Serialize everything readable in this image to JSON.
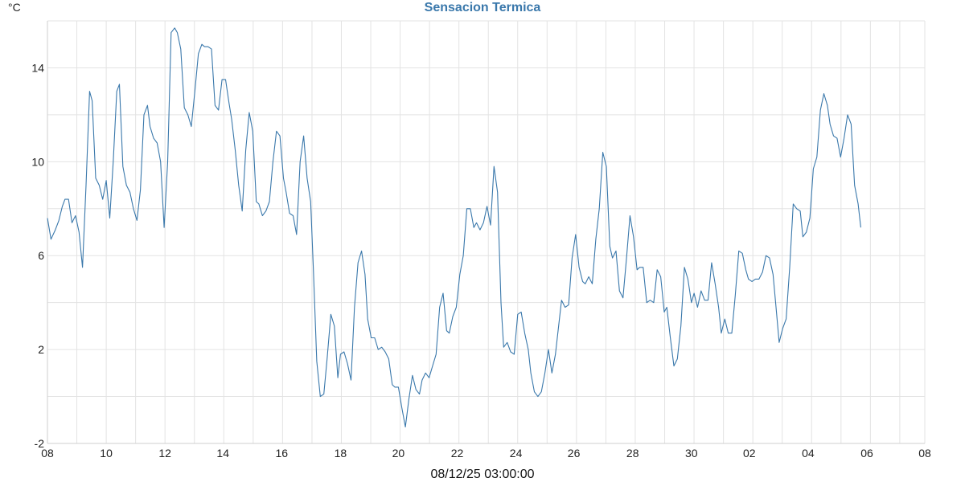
{
  "chart_data": {
    "type": "line",
    "title": "Sensacion Termica",
    "y_unit_label": "°C",
    "xlabel": "08/12/25 03:00:00",
    "ylim": [
      -2,
      16
    ],
    "x_domain": [
      0,
      1
    ],
    "y_ticks": [
      -2,
      2,
      6,
      10,
      14
    ],
    "x_ticks": [
      {
        "label": "08",
        "pos": 0.0
      },
      {
        "label": "10",
        "pos": 0.067
      },
      {
        "label": "12",
        "pos": 0.134
      },
      {
        "label": "14",
        "pos": 0.2
      },
      {
        "label": "16",
        "pos": 0.267
      },
      {
        "label": "18",
        "pos": 0.334
      },
      {
        "label": "20",
        "pos": 0.4
      },
      {
        "label": "22",
        "pos": 0.467
      },
      {
        "label": "24",
        "pos": 0.534
      },
      {
        "label": "26",
        "pos": 0.6
      },
      {
        "label": "28",
        "pos": 0.667
      },
      {
        "label": "30",
        "pos": 0.734
      },
      {
        "label": "02",
        "pos": 0.8
      },
      {
        "label": "04",
        "pos": 0.867
      },
      {
        "label": "06",
        "pos": 0.934
      },
      {
        "label": "08",
        "pos": 1.0
      }
    ],
    "grid": true,
    "colors": {
      "line": "#3a78ab",
      "title": "#3a78ab",
      "grid": "#e3e3e3"
    },
    "series": [
      {
        "points": [
          [
            0.0,
            7.6
          ],
          [
            0.004,
            6.7
          ],
          [
            0.009,
            7.1
          ],
          [
            0.013,
            7.5
          ],
          [
            0.017,
            8.1
          ],
          [
            0.02,
            8.4
          ],
          [
            0.024,
            8.4
          ],
          [
            0.028,
            7.4
          ],
          [
            0.032,
            7.7
          ],
          [
            0.036,
            7.0
          ],
          [
            0.04,
            5.5
          ],
          [
            0.044,
            9.0
          ],
          [
            0.048,
            13.0
          ],
          [
            0.051,
            12.6
          ],
          [
            0.055,
            9.3
          ],
          [
            0.059,
            9.0
          ],
          [
            0.063,
            8.4
          ],
          [
            0.067,
            9.2
          ],
          [
            0.071,
            7.6
          ],
          [
            0.075,
            10.0
          ],
          [
            0.079,
            13.0
          ],
          [
            0.082,
            13.3
          ],
          [
            0.086,
            9.8
          ],
          [
            0.09,
            9.0
          ],
          [
            0.094,
            8.7
          ],
          [
            0.098,
            8.0
          ],
          [
            0.102,
            7.5
          ],
          [
            0.106,
            8.8
          ],
          [
            0.11,
            12.0
          ],
          [
            0.114,
            12.4
          ],
          [
            0.117,
            11.5
          ],
          [
            0.121,
            11.0
          ],
          [
            0.125,
            10.8
          ],
          [
            0.129,
            10.0
          ],
          [
            0.133,
            7.2
          ],
          [
            0.137,
            10.0
          ],
          [
            0.141,
            15.5
          ],
          [
            0.145,
            15.7
          ],
          [
            0.148,
            15.5
          ],
          [
            0.152,
            14.8
          ],
          [
            0.156,
            12.3
          ],
          [
            0.16,
            12.0
          ],
          [
            0.164,
            11.5
          ],
          [
            0.168,
            13.0
          ],
          [
            0.172,
            14.6
          ],
          [
            0.176,
            15.0
          ],
          [
            0.179,
            14.9
          ],
          [
            0.183,
            14.9
          ],
          [
            0.187,
            14.8
          ],
          [
            0.191,
            12.4
          ],
          [
            0.195,
            12.2
          ],
          [
            0.199,
            13.5
          ],
          [
            0.203,
            13.5
          ],
          [
            0.207,
            12.5
          ],
          [
            0.21,
            11.8
          ],
          [
            0.214,
            10.5
          ],
          [
            0.218,
            9.0
          ],
          [
            0.222,
            7.9
          ],
          [
            0.226,
            10.5
          ],
          [
            0.23,
            12.1
          ],
          [
            0.234,
            11.3
          ],
          [
            0.238,
            8.3
          ],
          [
            0.241,
            8.2
          ],
          [
            0.245,
            7.7
          ],
          [
            0.249,
            7.9
          ],
          [
            0.253,
            8.3
          ],
          [
            0.257,
            10.0
          ],
          [
            0.261,
            11.3
          ],
          [
            0.265,
            11.1
          ],
          [
            0.269,
            9.3
          ],
          [
            0.272,
            8.7
          ],
          [
            0.276,
            7.8
          ],
          [
            0.28,
            7.7
          ],
          [
            0.284,
            6.9
          ],
          [
            0.288,
            10.0
          ],
          [
            0.292,
            11.1
          ],
          [
            0.296,
            9.3
          ],
          [
            0.3,
            8.3
          ],
          [
            0.303,
            5.5
          ],
          [
            0.307,
            1.5
          ],
          [
            0.311,
            0.0
          ],
          [
            0.315,
            0.1
          ],
          [
            0.319,
            1.7
          ],
          [
            0.323,
            3.5
          ],
          [
            0.327,
            3.0
          ],
          [
            0.331,
            0.8
          ],
          [
            0.334,
            1.8
          ],
          [
            0.338,
            1.9
          ],
          [
            0.342,
            1.4
          ],
          [
            0.346,
            0.7
          ],
          [
            0.35,
            3.8
          ],
          [
            0.354,
            5.7
          ],
          [
            0.358,
            6.2
          ],
          [
            0.362,
            5.2
          ],
          [
            0.365,
            3.3
          ],
          [
            0.369,
            2.5
          ],
          [
            0.373,
            2.5
          ],
          [
            0.377,
            2.0
          ],
          [
            0.381,
            2.1
          ],
          [
            0.385,
            1.9
          ],
          [
            0.389,
            1.6
          ],
          [
            0.393,
            0.5
          ],
          [
            0.396,
            0.4
          ],
          [
            0.4,
            0.4
          ],
          [
            0.404,
            -0.5
          ],
          [
            0.408,
            -1.3
          ],
          [
            0.412,
            -0.1
          ],
          [
            0.416,
            0.9
          ],
          [
            0.42,
            0.3
          ],
          [
            0.424,
            0.1
          ],
          [
            0.427,
            0.7
          ],
          [
            0.431,
            1.0
          ],
          [
            0.435,
            0.8
          ],
          [
            0.439,
            1.3
          ],
          [
            0.443,
            1.8
          ],
          [
            0.447,
            3.8
          ],
          [
            0.451,
            4.4
          ],
          [
            0.455,
            2.8
          ],
          [
            0.458,
            2.7
          ],
          [
            0.462,
            3.4
          ],
          [
            0.466,
            3.8
          ],
          [
            0.47,
            5.2
          ],
          [
            0.474,
            6.0
          ],
          [
            0.478,
            8.0
          ],
          [
            0.482,
            8.0
          ],
          [
            0.486,
            7.2
          ],
          [
            0.489,
            7.4
          ],
          [
            0.493,
            7.1
          ],
          [
            0.497,
            7.4
          ],
          [
            0.501,
            8.1
          ],
          [
            0.505,
            7.3
          ],
          [
            0.509,
            9.8
          ],
          [
            0.513,
            8.7
          ],
          [
            0.517,
            4.0
          ],
          [
            0.52,
            2.1
          ],
          [
            0.524,
            2.3
          ],
          [
            0.528,
            1.9
          ],
          [
            0.532,
            1.8
          ],
          [
            0.536,
            3.5
          ],
          [
            0.54,
            3.6
          ],
          [
            0.544,
            2.7
          ],
          [
            0.548,
            2.0
          ],
          [
            0.551,
            1.0
          ],
          [
            0.555,
            0.2
          ],
          [
            0.559,
            0.0
          ],
          [
            0.563,
            0.2
          ],
          [
            0.567,
            1.0
          ],
          [
            0.571,
            2.0
          ],
          [
            0.575,
            1.0
          ],
          [
            0.579,
            1.8
          ],
          [
            0.582,
            2.8
          ],
          [
            0.586,
            4.1
          ],
          [
            0.59,
            3.8
          ],
          [
            0.594,
            3.9
          ],
          [
            0.598,
            5.9
          ],
          [
            0.602,
            6.9
          ],
          [
            0.606,
            5.5
          ],
          [
            0.61,
            4.9
          ],
          [
            0.613,
            4.8
          ],
          [
            0.617,
            5.1
          ],
          [
            0.621,
            4.8
          ],
          [
            0.625,
            6.7
          ],
          [
            0.629,
            8.0
          ],
          [
            0.633,
            10.4
          ],
          [
            0.637,
            9.8
          ],
          [
            0.641,
            6.4
          ],
          [
            0.644,
            5.9
          ],
          [
            0.648,
            6.2
          ],
          [
            0.652,
            4.5
          ],
          [
            0.656,
            4.2
          ],
          [
            0.66,
            5.9
          ],
          [
            0.664,
            7.7
          ],
          [
            0.668,
            6.8
          ],
          [
            0.672,
            5.4
          ],
          [
            0.675,
            5.5
          ],
          [
            0.679,
            5.5
          ],
          [
            0.683,
            4.0
          ],
          [
            0.687,
            4.1
          ],
          [
            0.691,
            4.0
          ],
          [
            0.695,
            5.4
          ],
          [
            0.699,
            5.1
          ],
          [
            0.703,
            3.6
          ],
          [
            0.706,
            3.8
          ],
          [
            0.71,
            2.5
          ],
          [
            0.714,
            1.3
          ],
          [
            0.718,
            1.6
          ],
          [
            0.722,
            3.0
          ],
          [
            0.726,
            5.5
          ],
          [
            0.73,
            5.0
          ],
          [
            0.734,
            4.0
          ],
          [
            0.737,
            4.4
          ],
          [
            0.741,
            3.8
          ],
          [
            0.745,
            4.5
          ],
          [
            0.749,
            4.1
          ],
          [
            0.753,
            4.1
          ],
          [
            0.757,
            5.7
          ],
          [
            0.761,
            4.8
          ],
          [
            0.765,
            3.8
          ],
          [
            0.768,
            2.7
          ],
          [
            0.772,
            3.3
          ],
          [
            0.776,
            2.7
          ],
          [
            0.78,
            2.7
          ],
          [
            0.784,
            4.3
          ],
          [
            0.788,
            6.2
          ],
          [
            0.792,
            6.1
          ],
          [
            0.796,
            5.4
          ],
          [
            0.799,
            5.0
          ],
          [
            0.803,
            4.9
          ],
          [
            0.807,
            5.0
          ],
          [
            0.811,
            5.0
          ],
          [
            0.815,
            5.3
          ],
          [
            0.819,
            6.0
          ],
          [
            0.823,
            5.9
          ],
          [
            0.827,
            5.2
          ],
          [
            0.83,
            4.0
          ],
          [
            0.834,
            2.3
          ],
          [
            0.838,
            2.9
          ],
          [
            0.842,
            3.3
          ],
          [
            0.846,
            5.5
          ],
          [
            0.85,
            8.2
          ],
          [
            0.854,
            8.0
          ],
          [
            0.858,
            7.9
          ],
          [
            0.861,
            6.8
          ],
          [
            0.865,
            7.0
          ],
          [
            0.869,
            7.6
          ],
          [
            0.873,
            9.7
          ],
          [
            0.877,
            10.2
          ],
          [
            0.881,
            12.2
          ],
          [
            0.885,
            12.9
          ],
          [
            0.889,
            12.4
          ],
          [
            0.892,
            11.6
          ],
          [
            0.896,
            11.1
          ],
          [
            0.9,
            11.0
          ],
          [
            0.904,
            10.2
          ],
          [
            0.908,
            11.0
          ],
          [
            0.912,
            12.0
          ],
          [
            0.916,
            11.6
          ],
          [
            0.92,
            9.0
          ],
          [
            0.924,
            8.2
          ],
          [
            0.927,
            7.2
          ]
        ]
      }
    ]
  }
}
